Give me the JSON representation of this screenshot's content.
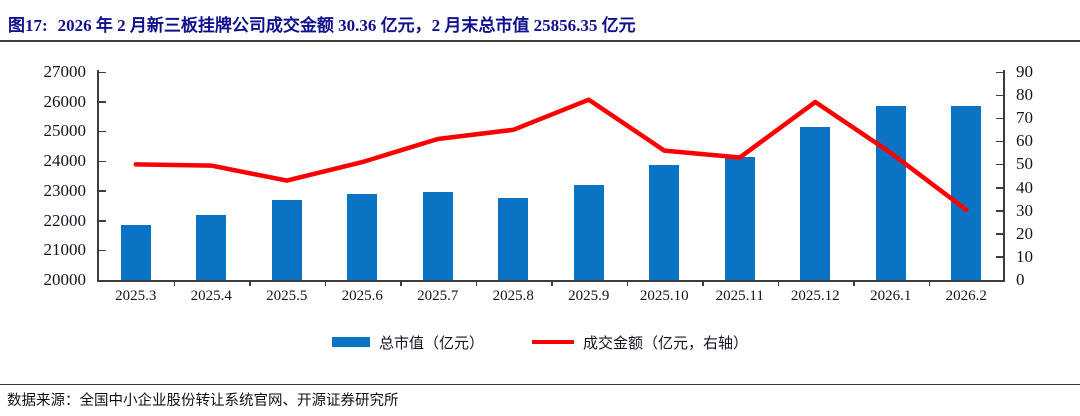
{
  "header": {
    "figure_label": "图17:",
    "title": "2026 年 2 月新三板挂牌公司成交金额 30.36 亿元，2 月末总市值 25856.35 亿元"
  },
  "footer": {
    "source": "数据来源：全国中小企业股份转让系统官网、开源证券研究所"
  },
  "colors": {
    "bar": "#0b73c4",
    "line": "#fb0000",
    "title": "#10108c",
    "axis": "#3d3d3d"
  },
  "chart_data": {
    "type": "bar",
    "subtype": "bar+line combo, dual axis",
    "title": "2026年2月新三板挂牌公司成交金额30.36亿元，2月末总市值25856.35亿元",
    "categories": [
      "2025.3",
      "2025.4",
      "2025.5",
      "2025.6",
      "2025.7",
      "2025.8",
      "2025.9",
      "2025.10",
      "2025.11",
      "2025.12",
      "2026.1",
      "2026.2"
    ],
    "series": [
      {
        "name": "总市值（亿元）",
        "type": "bar",
        "axis": "left",
        "color": "#0b73c4",
        "values": [
          21850,
          22200,
          22680,
          22880,
          22950,
          22770,
          23200,
          23880,
          24150,
          25160,
          25850,
          25856.35
        ]
      },
      {
        "name": "成交金额（亿元，右轴）",
        "type": "line",
        "axis": "right",
        "color": "#fb0000",
        "values": [
          50,
          49.5,
          43,
          51,
          61,
          65,
          78,
          56,
          53,
          77,
          55,
          30.36
        ]
      }
    ],
    "left_axis": {
      "min": 20000,
      "max": 27000,
      "step": 1000,
      "ticks": [
        27000,
        26000,
        25000,
        24000,
        23000,
        22000,
        21000,
        20000
      ]
    },
    "right_axis": {
      "min": 0,
      "max": 90,
      "step": 10,
      "ticks": [
        90,
        80,
        70,
        60,
        50,
        40,
        30,
        20,
        10,
        0
      ]
    },
    "legend": [
      "总市值（亿元）",
      "成交金额（亿元，右轴）"
    ],
    "legend_position": "bottom",
    "grid": false
  }
}
